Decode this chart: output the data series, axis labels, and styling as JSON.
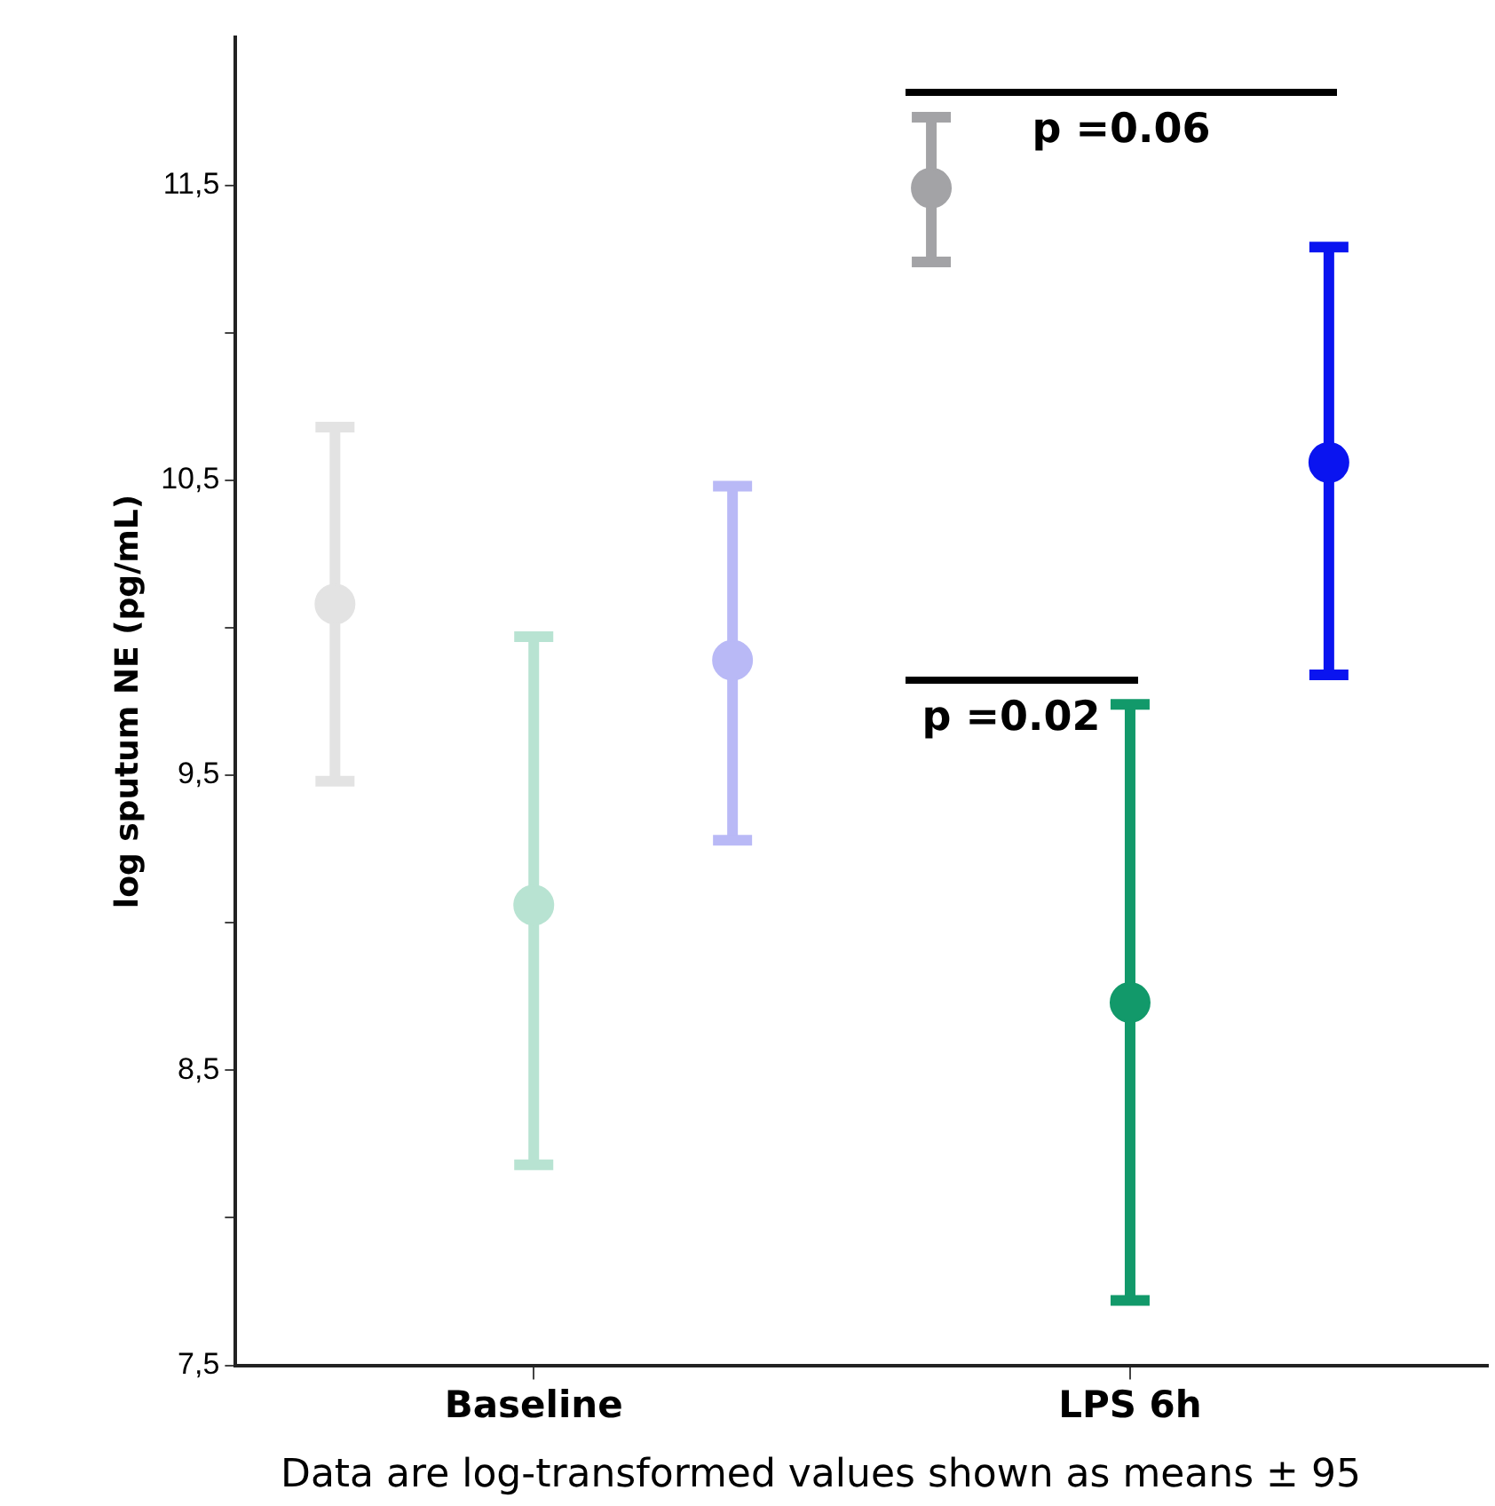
{
  "chart_data": {
    "type": "scatter",
    "ylabel": "log sputum NE (pg/mL)",
    "categories": [
      "Baseline",
      "LPS 6h"
    ],
    "series": [
      {
        "colors": [
          "#e3e3e3",
          "#a3a3a6"
        ],
        "values": [
          10.08,
          11.49
        ],
        "errors": [
          0.6,
          [
            11.24,
            11.73
          ]
        ]
      },
      {
        "colors": [
          "#b8e3d2",
          "#12996a"
        ],
        "values": [
          9.06,
          8.73
        ],
        "errors": [
          [
            8.18,
            9.97
          ],
          1.01
        ]
      },
      {
        "colors": [
          "#b9b9f6",
          "#0a14f0"
        ],
        "values": [
          9.89,
          10.56
        ],
        "errors": [
          [
            9.28,
            10.48
          ],
          [
            9.84,
            11.29
          ]
        ]
      }
    ],
    "ylim": [
      7.5,
      12.0
    ],
    "yticks": [
      {
        "value": 7.5,
        "label": "7,5"
      },
      {
        "value": 8,
        "label": null
      },
      {
        "value": 8.5,
        "label": "8,5"
      },
      {
        "value": 9,
        "label": null
      },
      {
        "value": 9.5,
        "label": "9,5"
      },
      {
        "value": 10,
        "label": null
      },
      {
        "value": 10.5,
        "label": "10,5"
      },
      {
        "value": 11,
        "label": null
      },
      {
        "value": 11.5,
        "label": "11,5"
      }
    ],
    "grid": false,
    "legend": false,
    "marker": "circle",
    "annotations": [
      "p =0.06",
      "p =0.02",
      "Data are log-transformed values shown as means ± 95"
    ]
  }
}
